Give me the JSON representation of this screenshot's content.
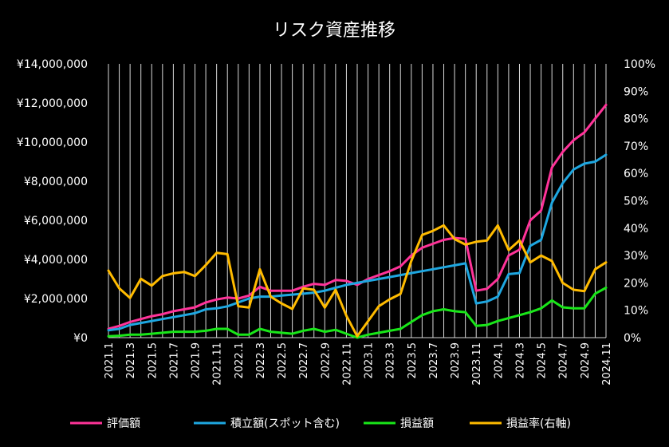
{
  "chart_data": {
    "type": "line",
    "title": "リスク資産推移",
    "y_left_ticks": [
      "¥0",
      "¥2,000,000",
      "¥4,000,000",
      "¥6,000,000",
      "¥8,000,000",
      "¥10,000,000",
      "¥12,000,000",
      "¥14,000,000"
    ],
    "y_right_ticks": [
      "0%",
      "10%",
      "20%",
      "30%",
      "40%",
      "50%",
      "60%",
      "70%",
      "80%",
      "90%",
      "100%"
    ],
    "ylim_left": [
      0,
      14000000
    ],
    "ylim_right": [
      0,
      100
    ],
    "grid": "vertical lines at each month",
    "legend_position": "bottom",
    "x": [
      "2021.1",
      "2021.2",
      "2021.3",
      "2021.4",
      "2021.5",
      "2021.6",
      "2021.7",
      "2021.8",
      "2021.9",
      "2021.10",
      "2021.11",
      "2021.12",
      "2022.1",
      "2022.2",
      "2022.3",
      "2022.4",
      "2022.5",
      "2022.6",
      "2022.7",
      "2022.8",
      "2022.9",
      "2022.10",
      "2022.11",
      "2022.12",
      "2023.1",
      "2023.2",
      "2023.3",
      "2023.4",
      "2023.5",
      "2023.6",
      "2023.7",
      "2023.8",
      "2023.9",
      "2023.10",
      "2023.11",
      "2023.12",
      "2024.1",
      "2024.2",
      "2024.3",
      "2024.4",
      "2024.5",
      "2024.6",
      "2024.7",
      "2024.8",
      "2024.9",
      "2024.10",
      "2024.11"
    ],
    "x_labels": [
      "2021.1",
      "2021.3",
      "2021.5",
      "2021.7",
      "2021.9",
      "2021.11",
      "2022.1",
      "2022.3",
      "2022.5",
      "2022.7",
      "2022.9",
      "2022.11",
      "2023.1",
      "2023.3",
      "2023.5",
      "2023.7",
      "2023.9",
      "2023.11",
      "2024.1",
      "2024.3",
      "2024.5",
      "2024.7",
      "2024.9",
      "2024.11"
    ],
    "series": [
      {
        "name": "評価額",
        "axis": "left",
        "color": "#ff3399",
        "values": [
          450000,
          600000,
          800000,
          950000,
          1100000,
          1200000,
          1350000,
          1450000,
          1550000,
          1800000,
          1950000,
          2050000,
          2000000,
          2150000,
          2600000,
          2400000,
          2400000,
          2400000,
          2600000,
          2750000,
          2700000,
          2950000,
          2900000,
          2700000,
          3000000,
          3200000,
          3400000,
          3650000,
          4200000,
          4600000,
          4800000,
          5000000,
          5100000,
          5050000,
          2400000,
          2500000,
          3000000,
          4200000,
          4500000,
          6000000,
          6500000,
          8700000,
          9500000,
          10100000,
          10500000,
          11200000,
          11900000
        ]
      },
      {
        "name": "積立額(スポット含む)",
        "axis": "left",
        "color": "#1ea7e1",
        "values": [
          380000,
          450000,
          650000,
          750000,
          850000,
          950000,
          1050000,
          1150000,
          1250000,
          1450000,
          1500000,
          1600000,
          1800000,
          2000000,
          2100000,
          2100000,
          2150000,
          2200000,
          2250000,
          2300000,
          2400000,
          2550000,
          2700000,
          2800000,
          2900000,
          3000000,
          3100000,
          3200000,
          3300000,
          3400000,
          3500000,
          3600000,
          3700000,
          3800000,
          1750000,
          1850000,
          2100000,
          3250000,
          3300000,
          4700000,
          5000000,
          6900000,
          7900000,
          8600000,
          8900000,
          9000000,
          9350000
        ]
      },
      {
        "name": "損益額",
        "axis": "left",
        "color": "#19e619",
        "values": [
          70000,
          100000,
          150000,
          150000,
          200000,
          250000,
          300000,
          300000,
          300000,
          350000,
          450000,
          450000,
          150000,
          150000,
          450000,
          300000,
          250000,
          200000,
          350000,
          450000,
          300000,
          400000,
          200000,
          0,
          150000,
          250000,
          350000,
          450000,
          800000,
          1150000,
          1350000,
          1450000,
          1350000,
          1300000,
          600000,
          650000,
          850000,
          1000000,
          1150000,
          1300000,
          1500000,
          1900000,
          1550000,
          1500000,
          1500000,
          2250000,
          2550000
        ]
      },
      {
        "name": "損益率(右軸)",
        "axis": "right",
        "color": "#ffbb00",
        "values": [
          24.5,
          18,
          14.5,
          21.5,
          19,
          22.5,
          23.5,
          24,
          22.5,
          26.5,
          31,
          30.5,
          11.5,
          11,
          25,
          15,
          12.5,
          10.5,
          18,
          17.5,
          11,
          17.5,
          8,
          0.5,
          6,
          11.5,
          14,
          16,
          28,
          37.5,
          39,
          41,
          36,
          34,
          35,
          35.5,
          41,
          32,
          35.5,
          27.5,
          30,
          28,
          20,
          17.5,
          17,
          25,
          27.5
        ]
      }
    ]
  }
}
